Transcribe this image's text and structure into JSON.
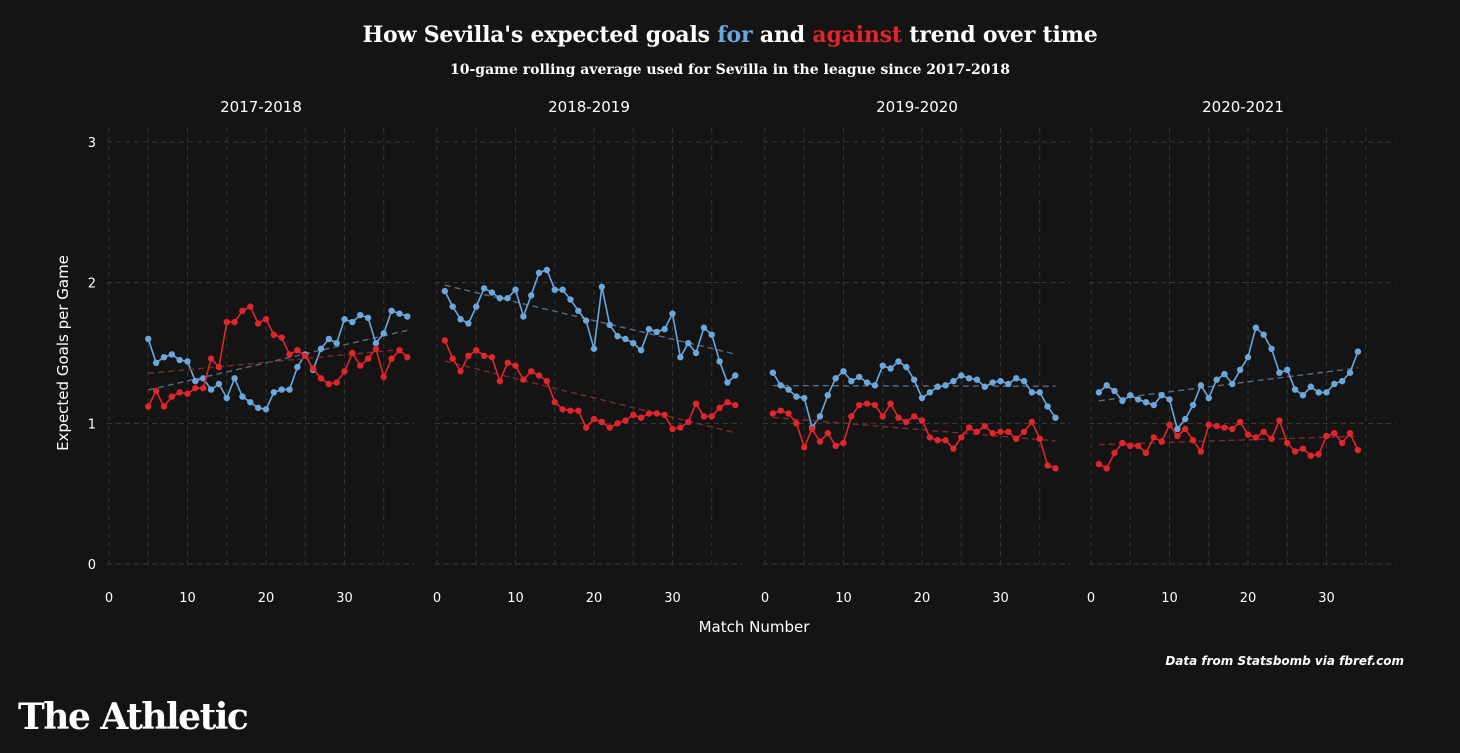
{
  "title": {
    "prefix": "How Sevilla's expected goals ",
    "for_word": "for",
    "middle": " and ",
    "against_word": "against",
    "suffix": " trend over time"
  },
  "subtitle": "10-game rolling average used for Sevilla in the league since 2017-2018",
  "source": "Data from Statsbomb via fbref.com",
  "brand": "The Athletic",
  "colors": {
    "for": "#6aa7dd",
    "against": "#e0252b",
    "background": "#141414"
  },
  "chart_data": {
    "type": "line",
    "xlabel": "Match Number",
    "ylabel": "Expected Goals per Game",
    "ylim": [
      0,
      3
    ],
    "yticks": [
      0,
      1,
      2,
      3
    ],
    "grid": true,
    "trendlines": "dashed linear fit per series",
    "facets": [
      {
        "title": "2017-2018",
        "xticks": [
          0,
          10,
          20,
          30
        ],
        "x_start": 5,
        "series": [
          {
            "key": "for",
            "values": [
              1.6,
              1.43,
              1.47,
              1.49,
              1.45,
              1.44,
              1.3,
              1.32,
              1.24,
              1.28,
              1.18,
              1.32,
              1.19,
              1.15,
              1.11,
              1.1,
              1.22,
              1.24,
              1.24,
              1.4,
              1.49,
              1.38,
              1.53,
              1.6,
              1.57,
              1.74,
              1.72,
              1.77,
              1.75,
              1.57,
              1.64,
              1.8,
              1.78,
              1.76
            ]
          },
          {
            "key": "against",
            "values": [
              1.12,
              1.23,
              1.12,
              1.19,
              1.22,
              1.21,
              1.25,
              1.25,
              1.46,
              1.4,
              1.72,
              1.72,
              1.8,
              1.83,
              1.71,
              1.74,
              1.63,
              1.61,
              1.49,
              1.52,
              1.48,
              1.39,
              1.32,
              1.28,
              1.29,
              1.37,
              1.5,
              1.41,
              1.46,
              1.53,
              1.33,
              1.46,
              1.52,
              1.47
            ]
          }
        ]
      },
      {
        "title": "2018-2019",
        "xticks": [
          0,
          10,
          20,
          30
        ],
        "x_start": 1,
        "series": [
          {
            "key": "for",
            "values": [
              1.94,
              1.83,
              1.74,
              1.71,
              1.83,
              1.96,
              1.93,
              1.89,
              1.89,
              1.95,
              1.76,
              1.91,
              2.07,
              2.09,
              1.95,
              1.95,
              1.88,
              1.8,
              1.73,
              1.53,
              1.97,
              1.7,
              1.62,
              1.6,
              1.57,
              1.52,
              1.67,
              1.65,
              1.67,
              1.78,
              1.47,
              1.57,
              1.5,
              1.68,
              1.63,
              1.44,
              1.29,
              1.34
            ]
          },
          {
            "key": "against",
            "values": [
              1.59,
              1.46,
              1.37,
              1.48,
              1.52,
              1.48,
              1.47,
              1.3,
              1.43,
              1.41,
              1.31,
              1.37,
              1.34,
              1.3,
              1.15,
              1.1,
              1.09,
              1.09,
              0.97,
              1.03,
              1.01,
              0.97,
              1.0,
              1.02,
              1.06,
              1.04,
              1.07,
              1.07,
              1.06,
              0.96,
              0.97,
              1.01,
              1.14,
              1.05,
              1.05,
              1.11,
              1.15,
              1.13
            ]
          }
        ]
      },
      {
        "title": "2019-2020",
        "xticks": [
          0,
          10,
          20,
          30
        ],
        "x_start": 1,
        "series": [
          {
            "key": "for",
            "values": [
              1.36,
              1.27,
              1.24,
              1.19,
              1.18,
              0.97,
              1.05,
              1.2,
              1.32,
              1.37,
              1.3,
              1.33,
              1.29,
              1.27,
              1.41,
              1.39,
              1.44,
              1.4,
              1.31,
              1.18,
              1.22,
              1.26,
              1.27,
              1.3,
              1.34,
              1.32,
              1.31,
              1.26,
              1.29,
              1.3,
              1.28,
              1.32,
              1.3,
              1.22,
              1.22,
              1.12,
              1.04
            ]
          },
          {
            "key": "against",
            "values": [
              1.07,
              1.09,
              1.07,
              1.0,
              0.83,
              0.96,
              0.87,
              0.93,
              0.84,
              0.86,
              1.05,
              1.13,
              1.14,
              1.13,
              1.05,
              1.14,
              1.04,
              1.01,
              1.05,
              1.02,
              0.9,
              0.88,
              0.88,
              0.82,
              0.9,
              0.97,
              0.94,
              0.98,
              0.93,
              0.94,
              0.94,
              0.89,
              0.94,
              1.01,
              0.89,
              0.7,
              0.68
            ]
          }
        ]
      },
      {
        "title": "2020-2021",
        "xticks": [
          0,
          10,
          20,
          30
        ],
        "x_start": 1,
        "series": [
          {
            "key": "for",
            "values": [
              1.22,
              1.27,
              1.23,
              1.16,
              1.2,
              1.17,
              1.15,
              1.13,
              1.2,
              1.17,
              0.96,
              1.03,
              1.13,
              1.27,
              1.18,
              1.31,
              1.35,
              1.28,
              1.38,
              1.47,
              1.68,
              1.63,
              1.53,
              1.36,
              1.38,
              1.24,
              1.2,
              1.26,
              1.22,
              1.22,
              1.28,
              1.3,
              1.36,
              1.51
            ]
          },
          {
            "key": "against",
            "values": [
              0.71,
              0.68,
              0.79,
              0.86,
              0.84,
              0.84,
              0.79,
              0.9,
              0.87,
              0.99,
              0.91,
              0.96,
              0.88,
              0.8,
              0.99,
              0.98,
              0.97,
              0.96,
              1.01,
              0.92,
              0.9,
              0.94,
              0.89,
              1.02,
              0.86,
              0.8,
              0.82,
              0.77,
              0.78,
              0.91,
              0.93,
              0.86,
              0.93,
              0.81
            ]
          }
        ]
      }
    ]
  }
}
